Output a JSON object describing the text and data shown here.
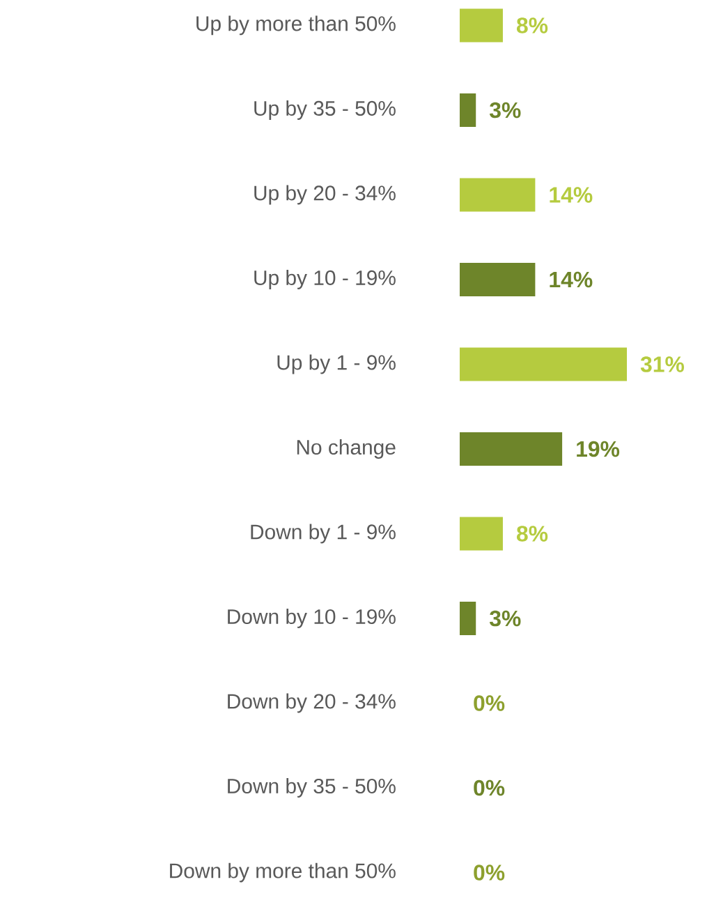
{
  "chart_data": {
    "type": "bar",
    "orientation": "horizontal",
    "relative": false,
    "categories": [
      "Up by more than 50%",
      "Up by 35 - 50%",
      "Up by 20 - 34%",
      "Up by 10 - 19%",
      "Up by 1 - 9%",
      "No change",
      "Down by 1 - 9%",
      "Down by 10 - 19%",
      "Down by 20 - 34%",
      "Down by 35 - 50%",
      "Down by more than 50%"
    ],
    "values": [
      8,
      3,
      14,
      14,
      31,
      19,
      8,
      3,
      0,
      0,
      0
    ],
    "value_labels": [
      "8%",
      "3%",
      "14%",
      "14%",
      "31%",
      "19%",
      "8%",
      "3%",
      "0%",
      "0%",
      "0%"
    ],
    "colors": [
      "#b5cb3f",
      "#6e852a",
      "#b5cb3f",
      "#6e852a",
      "#b5cb3f",
      "#6e852a",
      "#b5cb3f",
      "#6e852a",
      "#8da02e",
      "#6e852a",
      "#8da02e"
    ]
  }
}
